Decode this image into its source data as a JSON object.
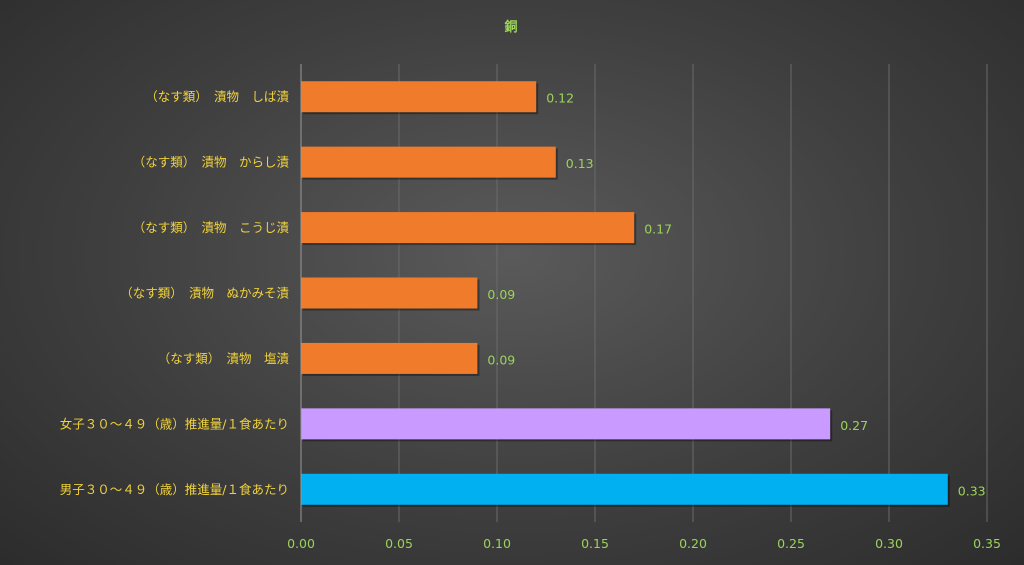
{
  "chart_data": {
    "type": "bar",
    "orientation": "horizontal",
    "title": "銅",
    "categories": [
      "（なす類）　漬物　しば漬",
      "（なす類）　漬物　からし漬",
      "（なす類）　漬物　こうじ漬",
      "（なす類）　漬物　ぬかみそ漬",
      "（なす類）　漬物　塩漬",
      "女子３０～４９（歳）推進量/１食あたり",
      "男子３０～４９（歳）推進量/１食あたり"
    ],
    "values": [
      0.12,
      0.13,
      0.17,
      0.09,
      0.09,
      0.27,
      0.33
    ],
    "value_labels": [
      "0.12",
      "0.13",
      "0.17",
      "0.09",
      "0.09",
      "0.27",
      "0.33"
    ],
    "colors": [
      "#f07b2b",
      "#f07b2b",
      "#f07b2b",
      "#f07b2b",
      "#f07b2b",
      "#c99aff",
      "#00b0f0"
    ],
    "xlim": [
      0,
      0.35
    ],
    "x_ticks": [
      "0.00",
      "0.05",
      "0.10",
      "0.15",
      "0.20",
      "0.25",
      "0.30",
      "0.35"
    ],
    "grid": true,
    "legend": "none"
  }
}
